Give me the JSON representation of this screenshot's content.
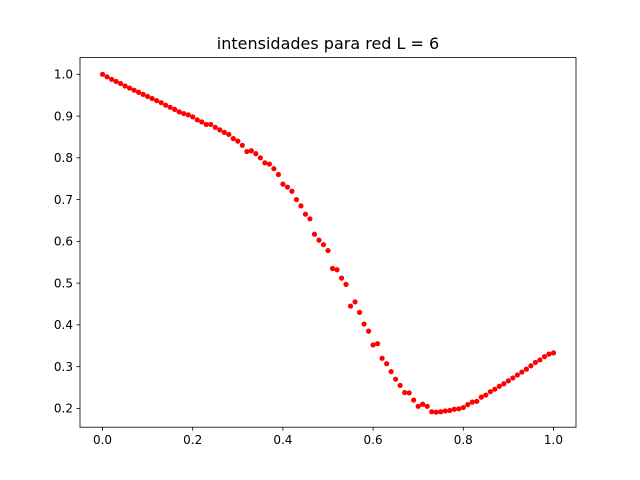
{
  "chart_data": {
    "type": "scatter",
    "title": "intensidades para red L = 6",
    "xlabel": "",
    "ylabel": "",
    "xlim": [
      -0.05,
      1.05
    ],
    "ylim": [
      0.155,
      1.04
    ],
    "xticks": [
      0.0,
      0.2,
      0.4,
      0.6,
      0.8,
      1.0
    ],
    "xtick_labels": [
      "0.0",
      "0.2",
      "0.4",
      "0.6",
      "0.8",
      "1.0"
    ],
    "yticks": [
      0.2,
      0.3,
      0.4,
      0.5,
      0.6,
      0.7,
      0.8,
      0.9,
      1.0
    ],
    "ytick_labels": [
      "0.2",
      "0.3",
      "0.4",
      "0.5",
      "0.6",
      "0.7",
      "0.8",
      "0.9",
      "1.0"
    ],
    "grid": false,
    "legend": false,
    "series": [
      {
        "color": "#ff0000",
        "marker": "circle",
        "x": [
          0.0,
          0.01,
          0.02,
          0.03,
          0.04,
          0.05,
          0.06,
          0.07,
          0.08,
          0.09,
          0.1,
          0.11,
          0.12,
          0.13,
          0.14,
          0.15,
          0.16,
          0.17,
          0.18,
          0.19,
          0.2,
          0.21,
          0.22,
          0.23,
          0.24,
          0.25,
          0.26,
          0.27,
          0.28,
          0.29,
          0.3,
          0.31,
          0.32,
          0.33,
          0.34,
          0.35,
          0.36,
          0.37,
          0.38,
          0.39,
          0.4,
          0.41,
          0.42,
          0.43,
          0.44,
          0.45,
          0.46,
          0.47,
          0.48,
          0.49,
          0.5,
          0.51,
          0.52,
          0.53,
          0.54,
          0.55,
          0.56,
          0.57,
          0.58,
          0.59,
          0.6,
          0.61,
          0.62,
          0.63,
          0.64,
          0.65,
          0.66,
          0.67,
          0.68,
          0.69,
          0.7,
          0.71,
          0.72,
          0.73,
          0.74,
          0.75,
          0.76,
          0.77,
          0.78,
          0.79,
          0.8,
          0.81,
          0.82,
          0.83,
          0.84,
          0.85,
          0.86,
          0.87,
          0.88,
          0.89,
          0.9,
          0.91,
          0.92,
          0.93,
          0.94,
          0.95,
          0.96,
          0.97,
          0.98,
          0.99,
          1.0
        ],
        "y": [
          1.0,
          0.994,
          0.988,
          0.983,
          0.978,
          0.972,
          0.967,
          0.962,
          0.957,
          0.952,
          0.947,
          0.942,
          0.937,
          0.932,
          0.926,
          0.921,
          0.916,
          0.91,
          0.906,
          0.903,
          0.898,
          0.891,
          0.886,
          0.88,
          0.88,
          0.873,
          0.867,
          0.861,
          0.856,
          0.846,
          0.84,
          0.83,
          0.815,
          0.817,
          0.81,
          0.8,
          0.788,
          0.785,
          0.774,
          0.76,
          0.737,
          0.73,
          0.72,
          0.7,
          0.685,
          0.665,
          0.654,
          0.617,
          0.603,
          0.592,
          0.578,
          0.535,
          0.532,
          0.512,
          0.497,
          0.445,
          0.455,
          0.43,
          0.402,
          0.385,
          0.352,
          0.355,
          0.32,
          0.307,
          0.288,
          0.27,
          0.255,
          0.238,
          0.237,
          0.22,
          0.205,
          0.21,
          0.205,
          0.192,
          0.191,
          0.192,
          0.194,
          0.195,
          0.198,
          0.199,
          0.202,
          0.209,
          0.215,
          0.217,
          0.227,
          0.232,
          0.24,
          0.246,
          0.253,
          0.259,
          0.266,
          0.273,
          0.28,
          0.287,
          0.294,
          0.302,
          0.31,
          0.316,
          0.324,
          0.33,
          0.333
        ]
      }
    ]
  }
}
